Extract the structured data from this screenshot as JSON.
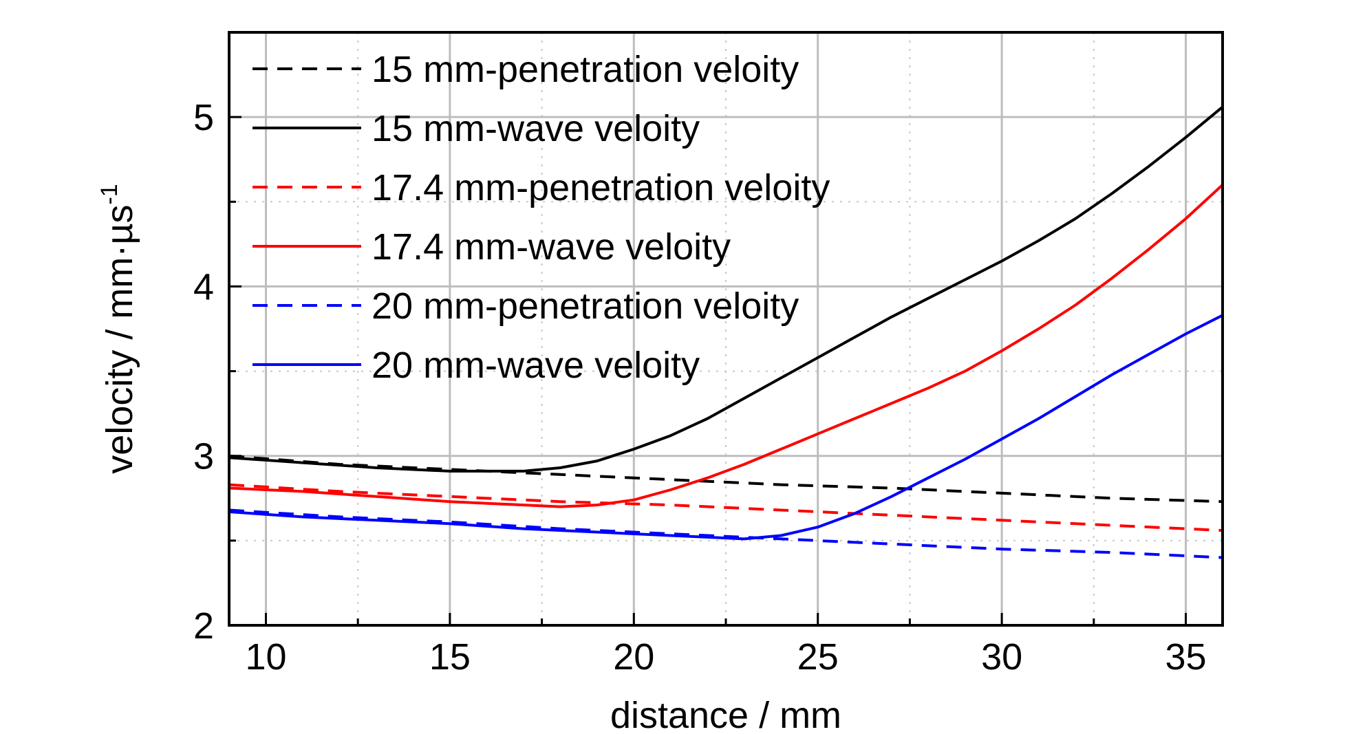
{
  "chart_data": {
    "type": "line",
    "xlabel": "distance / mm",
    "ylabel": "velocity / mm·µs",
    "ylabel_superscript": "-1",
    "xlim": [
      9,
      36
    ],
    "ylim": [
      2,
      5.5
    ],
    "x_ticks": [
      10,
      15,
      20,
      25,
      30,
      35
    ],
    "y_ticks": [
      2,
      3,
      4,
      5
    ],
    "x_tick_labels": [
      "10",
      "15",
      "20",
      "25",
      "30",
      "35"
    ],
    "y_tick_labels": [
      "2",
      "3",
      "4",
      "5"
    ],
    "grid": true,
    "legend_position": "top-left",
    "series": [
      {
        "name": "15 mm-penetration veloity",
        "color": "#000000",
        "style": "dashed",
        "x": [
          9,
          12,
          15,
          18,
          21,
          24,
          27,
          30,
          33,
          36
        ],
        "y": [
          3.0,
          2.95,
          2.92,
          2.89,
          2.86,
          2.83,
          2.81,
          2.78,
          2.75,
          2.73
        ]
      },
      {
        "name": "15 mm-wave veloity",
        "color": "#000000",
        "style": "solid",
        "x": [
          9,
          11,
          13,
          15,
          17,
          18,
          19,
          20,
          21,
          22,
          23,
          24,
          25,
          26,
          27,
          28,
          29,
          30,
          31,
          32,
          33,
          34,
          35,
          36
        ],
        "y": [
          2.99,
          2.96,
          2.93,
          2.91,
          2.91,
          2.93,
          2.97,
          3.04,
          3.12,
          3.22,
          3.34,
          3.46,
          3.58,
          3.7,
          3.82,
          3.93,
          4.04,
          4.15,
          4.27,
          4.4,
          4.55,
          4.71,
          4.88,
          5.06
        ]
      },
      {
        "name": "17.4 mm-penetration veloity",
        "color": "#ff0000",
        "style": "dashed",
        "x": [
          9,
          12,
          15,
          18,
          21,
          24,
          27,
          30,
          33,
          36
        ],
        "y": [
          2.83,
          2.79,
          2.76,
          2.73,
          2.71,
          2.68,
          2.65,
          2.62,
          2.59,
          2.56
        ]
      },
      {
        "name": "17.4 mm-wave veloity",
        "color": "#ff0000",
        "style": "solid",
        "x": [
          9,
          11,
          13,
          15,
          17,
          18,
          19,
          20,
          21,
          22,
          23,
          24,
          25,
          26,
          27,
          28,
          29,
          30,
          31,
          32,
          33,
          34,
          35,
          36
        ],
        "y": [
          2.81,
          2.79,
          2.76,
          2.73,
          2.71,
          2.7,
          2.71,
          2.74,
          2.8,
          2.87,
          2.95,
          3.04,
          3.13,
          3.22,
          3.31,
          3.4,
          3.5,
          3.62,
          3.75,
          3.89,
          4.05,
          4.22,
          4.4,
          4.6
        ]
      },
      {
        "name": "20 mm-penetration veloity",
        "color": "#0000ff",
        "style": "dashed",
        "x": [
          9,
          12,
          15,
          18,
          21,
          24,
          27,
          30,
          33,
          36
        ],
        "y": [
          2.68,
          2.64,
          2.61,
          2.57,
          2.54,
          2.51,
          2.48,
          2.45,
          2.43,
          2.4
        ]
      },
      {
        "name": "20 mm-wave veloity",
        "color": "#0000ff",
        "style": "solid",
        "x": [
          9,
          11,
          13,
          15,
          17,
          19,
          21,
          22,
          23,
          24,
          25,
          26,
          27,
          28,
          29,
          30,
          31,
          32,
          33,
          34,
          35,
          36
        ],
        "y": [
          2.67,
          2.64,
          2.62,
          2.6,
          2.57,
          2.55,
          2.53,
          2.52,
          2.51,
          2.53,
          2.58,
          2.66,
          2.76,
          2.87,
          2.98,
          3.1,
          3.22,
          3.35,
          3.48,
          3.6,
          3.72,
          3.83
        ]
      }
    ]
  }
}
